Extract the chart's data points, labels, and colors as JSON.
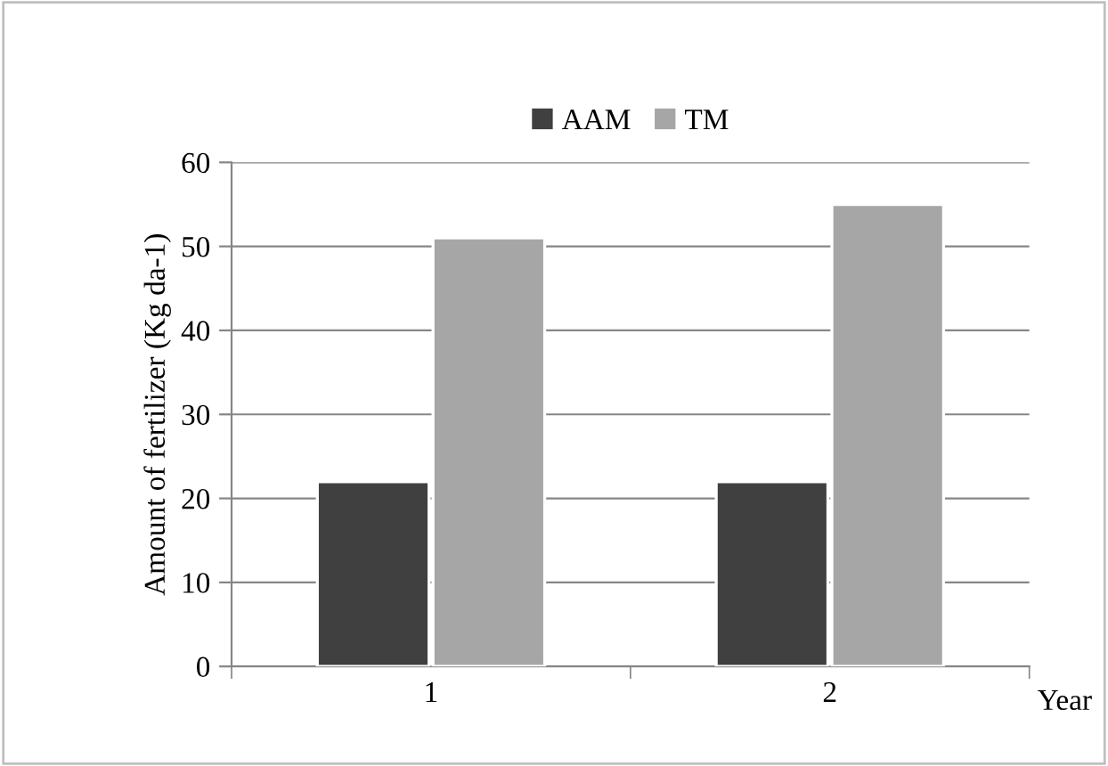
{
  "chart_data": {
    "type": "bar",
    "xlabel": "Year",
    "ylabel": "Amount of fertilizer (Kg da-1)",
    "categories": [
      "1",
      "2"
    ],
    "series": [
      {
        "name": "AAM",
        "color": "#404040",
        "values": [
          22,
          22
        ]
      },
      {
        "name": "TM",
        "color": "#a6a6a6",
        "values": [
          51,
          55
        ]
      }
    ],
    "ylim": [
      0,
      60
    ],
    "yticks": [
      0,
      10,
      20,
      30,
      40,
      50,
      60
    ],
    "grid": "y",
    "legend": "top"
  }
}
